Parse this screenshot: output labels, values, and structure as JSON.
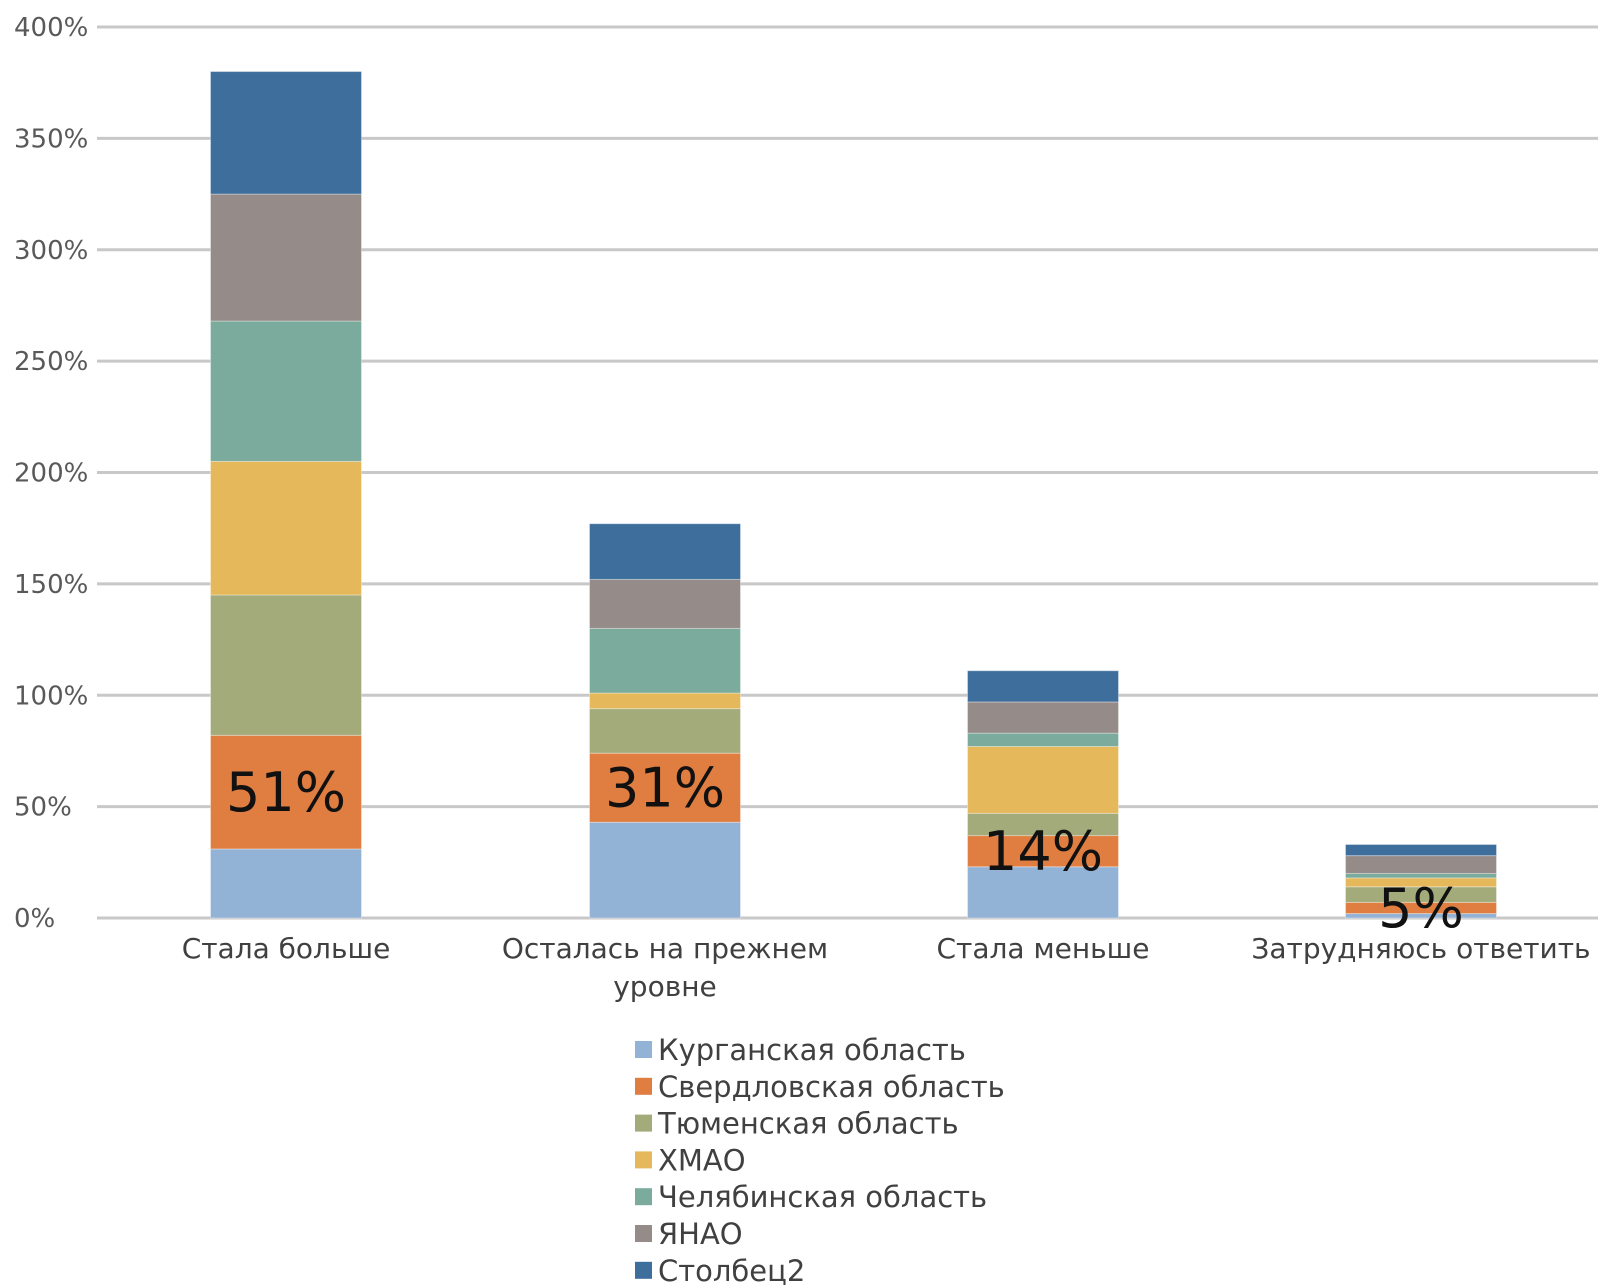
{
  "chart_data": {
    "type": "bar",
    "stacked": true,
    "categories": [
      [
        "Стала больше"
      ],
      [
        "Осталась на прежнем",
        "уровне"
      ],
      [
        "Стала меньше"
      ],
      [
        "Затрудняюсь ответить"
      ]
    ],
    "series": [
      {
        "name": "Курганская область",
        "color": "#93b3d6",
        "values": [
          31,
          43,
          23,
          2
        ]
      },
      {
        "name": "Свердловская область",
        "color": "#e07d40",
        "values": [
          51,
          31,
          14,
          5
        ]
      },
      {
        "name": "Тюменская область",
        "color": "#a3ab7a",
        "values": [
          63,
          20,
          10,
          7
        ]
      },
      {
        "name": "ХМАО",
        "color": "#e6b85c",
        "values": [
          60,
          7,
          30,
          4
        ]
      },
      {
        "name": "Челябинская область",
        "color": "#7aab9c",
        "values": [
          63,
          29,
          6,
          2
        ]
      },
      {
        "name": "ЯНАО",
        "color": "#958b89",
        "values": [
          57,
          22,
          14,
          8
        ]
      },
      {
        "name": "Столбец2",
        "color": "#3d6e9c",
        "values": [
          55,
          25,
          14,
          5
        ]
      }
    ],
    "data_labels": {
      "series": "Свердловская область",
      "texts": [
        "51%",
        "31%",
        "14%",
        "5%"
      ]
    },
    "y_ticks": [
      "0%",
      "50%",
      "100%",
      "150%",
      "200%",
      "250%",
      "300%",
      "350%",
      "400%"
    ],
    "ylim": [
      0,
      400
    ],
    "grid": true,
    "legend_position": "bottom"
  }
}
